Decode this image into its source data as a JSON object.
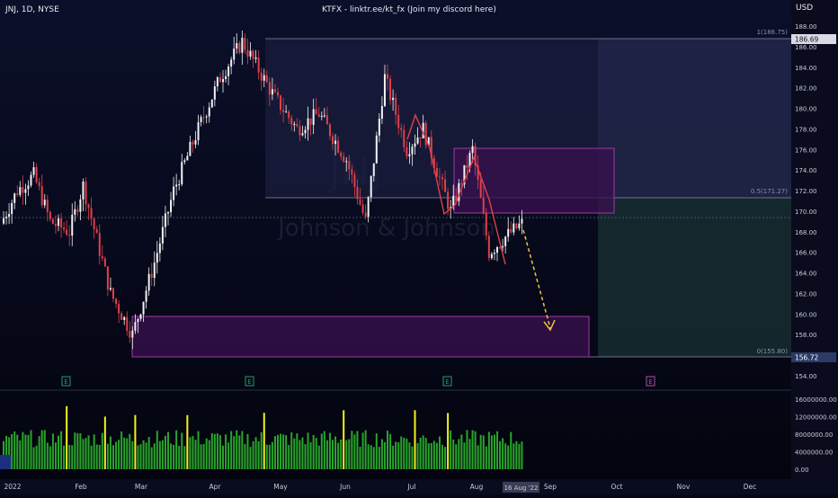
{
  "header": {
    "symbol": "JNJ, 1D, NYSE",
    "center_text": "KTFX - linktr.ee/kt_fx (Join my discord here)",
    "currency": "USD"
  },
  "watermark": {
    "ticker": "JNJ",
    "company": "Johnson & Johnson"
  },
  "price_axis": {
    "ticks": [
      "188.00",
      "186.00",
      "184.00",
      "182.00",
      "180.00",
      "178.00",
      "176.00",
      "174.00",
      "172.00",
      "170.00",
      "168.00",
      "166.00",
      "164.00",
      "162.00",
      "160.00",
      "158.00",
      "156.00",
      "154.00"
    ],
    "badge_top": "186.69",
    "badge_bottom": "156.72"
  },
  "volume_axis": {
    "ticks": [
      "16000000.00",
      "12000000.00",
      "8000000.00",
      "4000000.00",
      "0.00"
    ]
  },
  "time_axis": {
    "labels": [
      "2022",
      "Feb",
      "Mar",
      "Apr",
      "May",
      "Jun",
      "Jul",
      "Aug",
      "Sep",
      "Oct",
      "Nov",
      "Dec"
    ],
    "highlight": "16 Aug '22"
  },
  "fib": {
    "level_1": "1(186.75)",
    "level_05": "0.5(171.27)",
    "level_0": "0(155.80)"
  },
  "earnings_markers": [
    "E",
    "E",
    "E",
    "E"
  ],
  "colors": {
    "up": "#f2f2f2",
    "down": "#e0404a",
    "zone_fill": "#3a1050",
    "zone_border": "#a03aa0",
    "volume": "#28a52a",
    "volume_high": "#f2f21a",
    "arrow": "#f0c23a",
    "zigzag": "#e0404a"
  },
  "chart_data": {
    "type": "candlestick",
    "y_range": [
      153.5,
      189.0
    ],
    "annotations": [
      "supply zone ~170-176",
      "demand zone ~155.8-159.8",
      "projected drop to ~158.5"
    ]
  }
}
